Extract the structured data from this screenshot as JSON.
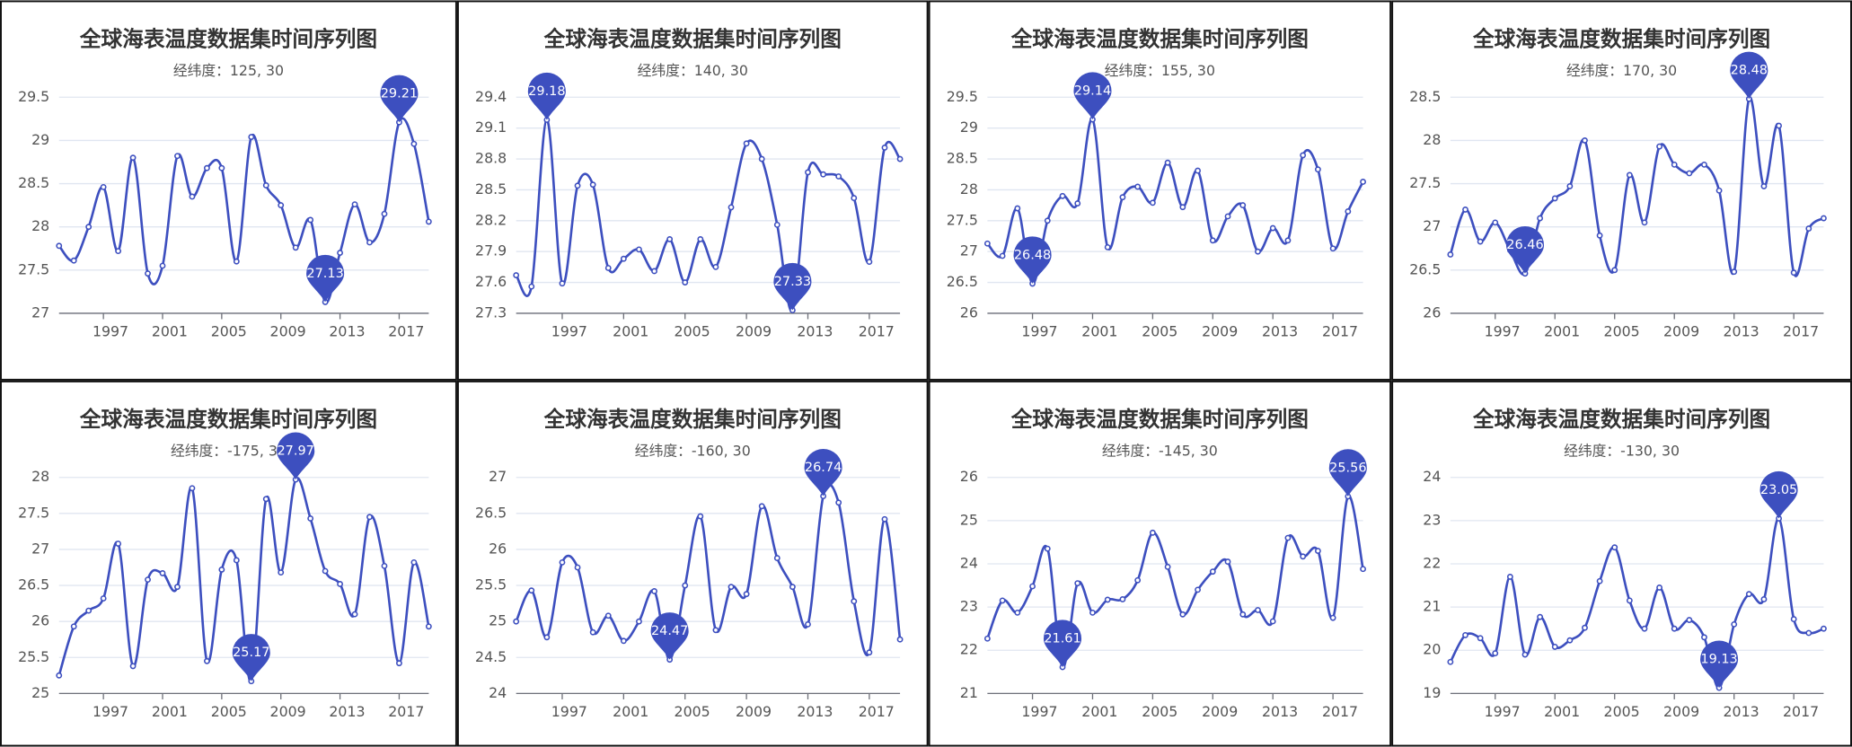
{
  "chart_data": [
    {
      "type": "line",
      "title": "全球海表温度数据集时间序列图",
      "subtitle": "经纬度：125, 30",
      "x": [
        1994,
        1995,
        1996,
        1997,
        1998,
        1999,
        2000,
        2001,
        2002,
        2003,
        2004,
        2005,
        2006,
        2007,
        2008,
        2009,
        2010,
        2011,
        2012,
        2013,
        2014,
        2015,
        2016,
        2017,
        2018,
        2019
      ],
      "values": [
        27.78,
        27.61,
        28.0,
        28.46,
        27.72,
        28.8,
        27.46,
        27.55,
        28.82,
        28.35,
        28.68,
        28.68,
        27.6,
        29.04,
        28.48,
        28.25,
        27.76,
        28.08,
        27.13,
        27.7,
        28.26,
        27.82,
        28.15,
        29.21,
        28.96,
        28.06
      ],
      "color": "#3d4fbf",
      "xlim": [
        1994,
        2019
      ],
      "xticks": [
        1997,
        2001,
        2005,
        2009,
        2013,
        2017
      ],
      "ylim": [
        27,
        29.5
      ],
      "yticks": [
        27,
        27.5,
        28,
        28.5,
        29,
        29.5
      ],
      "grid": true,
      "mark_extremes": true
    },
    {
      "type": "line",
      "title": "全球海表温度数据集时间序列图",
      "subtitle": "经纬度：140, 30",
      "x": [
        1994,
        1995,
        1996,
        1997,
        1998,
        1999,
        2000,
        2001,
        2002,
        2003,
        2004,
        2005,
        2006,
        2007,
        2008,
        2009,
        2010,
        2011,
        2012,
        2013,
        2014,
        2015,
        2016,
        2017,
        2018,
        2019
      ],
      "values": [
        27.67,
        27.56,
        29.18,
        27.59,
        28.54,
        28.55,
        27.74,
        27.83,
        27.92,
        27.71,
        28.02,
        27.6,
        28.02,
        27.75,
        28.33,
        28.95,
        28.8,
        28.16,
        27.33,
        28.67,
        28.65,
        28.63,
        28.42,
        27.8,
        28.91,
        28.8
      ],
      "color": "#3d4fbf",
      "xlim": [
        1994,
        2019
      ],
      "xticks": [
        1997,
        2001,
        2005,
        2009,
        2013,
        2017
      ],
      "ylim": [
        27.3,
        29.4
      ],
      "yticks": [
        27.3,
        27.6,
        27.9,
        28.2,
        28.5,
        28.8,
        29.1,
        29.4
      ],
      "grid": true,
      "mark_extremes": true
    },
    {
      "type": "line",
      "title": "全球海表温度数据集时间序列图",
      "subtitle": "经纬度：155, 30",
      "x": [
        1994,
        1995,
        1996,
        1997,
        1998,
        1999,
        2000,
        2001,
        2002,
        2003,
        2004,
        2005,
        2006,
        2007,
        2008,
        2009,
        2010,
        2011,
        2012,
        2013,
        2014,
        2015,
        2016,
        2017,
        2018,
        2019
      ],
      "values": [
        27.13,
        26.93,
        27.7,
        26.48,
        27.5,
        27.9,
        27.78,
        29.14,
        27.07,
        27.88,
        28.05,
        27.79,
        28.44,
        27.72,
        28.31,
        27.18,
        27.57,
        27.75,
        27.0,
        27.38,
        27.18,
        28.56,
        28.33,
        27.05,
        27.65,
        28.13
      ],
      "color": "#3d4fbf",
      "xlim": [
        1994,
        2019
      ],
      "xticks": [
        1997,
        2001,
        2005,
        2009,
        2013,
        2017
      ],
      "ylim": [
        26,
        29.5
      ],
      "yticks": [
        26,
        26.5,
        27,
        27.5,
        28,
        28.5,
        29,
        29.5
      ],
      "grid": true,
      "mark_extremes": true
    },
    {
      "type": "line",
      "title": "全球海表温度数据集时间序列图",
      "subtitle": "经纬度：170, 30",
      "x": [
        1994,
        1995,
        1996,
        1997,
        1998,
        1999,
        2000,
        2001,
        2002,
        2003,
        2004,
        2005,
        2006,
        2007,
        2008,
        2009,
        2010,
        2011,
        2012,
        2013,
        2014,
        2015,
        2016,
        2017,
        2018,
        2019
      ],
      "values": [
        26.68,
        27.2,
        26.83,
        27.05,
        26.73,
        26.46,
        27.1,
        27.33,
        27.47,
        28.0,
        26.9,
        26.5,
        27.6,
        27.05,
        27.93,
        27.72,
        27.62,
        27.72,
        27.42,
        26.48,
        28.48,
        27.47,
        28.17,
        26.47,
        26.98,
        27.1
      ],
      "color": "#3d4fbf",
      "xlim": [
        1994,
        2019
      ],
      "xticks": [
        1997,
        2001,
        2005,
        2009,
        2013,
        2017
      ],
      "ylim": [
        26,
        28.5
      ],
      "yticks": [
        26,
        26.5,
        27,
        27.5,
        28,
        28.5
      ],
      "grid": true,
      "mark_extremes": true
    },
    {
      "type": "line",
      "title": "全球海表温度数据集时间序列图",
      "subtitle": "经纬度：-175, 30",
      "x": [
        1994,
        1995,
        1996,
        1997,
        1998,
        1999,
        2000,
        2001,
        2002,
        2003,
        2004,
        2005,
        2006,
        2007,
        2008,
        2009,
        2010,
        2011,
        2012,
        2013,
        2014,
        2015,
        2016,
        2017,
        2018,
        2019
      ],
      "values": [
        25.25,
        25.93,
        26.15,
        26.32,
        27.08,
        25.38,
        26.58,
        26.67,
        26.48,
        27.85,
        25.45,
        26.72,
        26.85,
        25.17,
        27.7,
        26.68,
        27.97,
        27.43,
        26.7,
        26.52,
        26.1,
        27.45,
        26.77,
        25.42,
        26.82,
        25.93
      ],
      "color": "#3d4fbf",
      "xlim": [
        1994,
        2019
      ],
      "xticks": [
        1997,
        2001,
        2005,
        2009,
        2013,
        2017
      ],
      "ylim": [
        25,
        28
      ],
      "yticks": [
        25,
        25.5,
        26,
        26.5,
        27,
        27.5,
        28
      ],
      "grid": true,
      "mark_extremes": true
    },
    {
      "type": "line",
      "title": "全球海表温度数据集时间序列图",
      "subtitle": "经纬度：-160, 30",
      "x": [
        1994,
        1995,
        1996,
        1997,
        1998,
        1999,
        2000,
        2001,
        2002,
        2003,
        2004,
        2005,
        2006,
        2007,
        2008,
        2009,
        2010,
        2011,
        2012,
        2013,
        2014,
        2015,
        2016,
        2017,
        2018,
        2019
      ],
      "values": [
        25.0,
        25.43,
        24.78,
        25.82,
        25.75,
        24.85,
        25.08,
        24.73,
        25.0,
        25.42,
        24.47,
        25.5,
        26.46,
        24.88,
        25.48,
        25.38,
        26.6,
        25.88,
        25.48,
        24.96,
        26.74,
        26.65,
        25.28,
        24.57,
        26.42,
        24.75
      ],
      "color": "#3d4fbf",
      "xlim": [
        1994,
        2019
      ],
      "xticks": [
        1997,
        2001,
        2005,
        2009,
        2013,
        2017
      ],
      "ylim": [
        24,
        27
      ],
      "yticks": [
        24,
        24.5,
        25,
        25.5,
        26,
        26.5,
        27
      ],
      "grid": true,
      "mark_extremes": true
    },
    {
      "type": "line",
      "title": "全球海表温度数据集时间序列图",
      "subtitle": "经纬度：-145, 30",
      "x": [
        1994,
        1995,
        1996,
        1997,
        1998,
        1999,
        2000,
        2001,
        2002,
        2003,
        2004,
        2005,
        2006,
        2007,
        2008,
        2009,
        2010,
        2011,
        2012,
        2013,
        2014,
        2015,
        2016,
        2017,
        2018,
        2019
      ],
      "values": [
        22.27,
        23.15,
        22.87,
        23.48,
        24.35,
        21.61,
        23.55,
        22.87,
        23.17,
        23.18,
        23.62,
        24.72,
        23.93,
        22.83,
        23.4,
        23.82,
        24.05,
        22.83,
        22.93,
        22.67,
        24.6,
        24.17,
        24.3,
        22.75,
        25.56,
        23.88
      ],
      "color": "#3d4fbf",
      "xlim": [
        1994,
        2019
      ],
      "xticks": [
        1997,
        2001,
        2005,
        2009,
        2013,
        2017
      ],
      "ylim": [
        21,
        26
      ],
      "yticks": [
        21,
        22,
        23,
        24,
        25,
        26
      ],
      "grid": true,
      "mark_extremes": true
    },
    {
      "type": "line",
      "title": "全球海表温度数据集时间序列图",
      "subtitle": "经纬度：-130, 30",
      "x": [
        1994,
        1995,
        1996,
        1997,
        1998,
        1999,
        2000,
        2001,
        2002,
        2003,
        2004,
        2005,
        2006,
        2007,
        2008,
        2009,
        2010,
        2011,
        2012,
        2013,
        2014,
        2015,
        2016,
        2017,
        2018,
        2019
      ],
      "values": [
        19.73,
        20.35,
        20.28,
        19.93,
        21.7,
        19.9,
        20.77,
        20.08,
        20.23,
        20.52,
        21.6,
        22.38,
        21.15,
        20.5,
        21.45,
        20.5,
        20.7,
        20.3,
        19.13,
        20.6,
        21.3,
        21.18,
        23.05,
        20.72,
        20.4,
        20.5
      ],
      "color": "#3d4fbf",
      "xlim": [
        1994,
        2019
      ],
      "xticks": [
        1997,
        2001,
        2005,
        2009,
        2013,
        2017
      ],
      "ylim": [
        19,
        24
      ],
      "yticks": [
        19,
        20,
        21,
        22,
        23,
        24
      ],
      "grid": true,
      "mark_extremes": true
    }
  ]
}
